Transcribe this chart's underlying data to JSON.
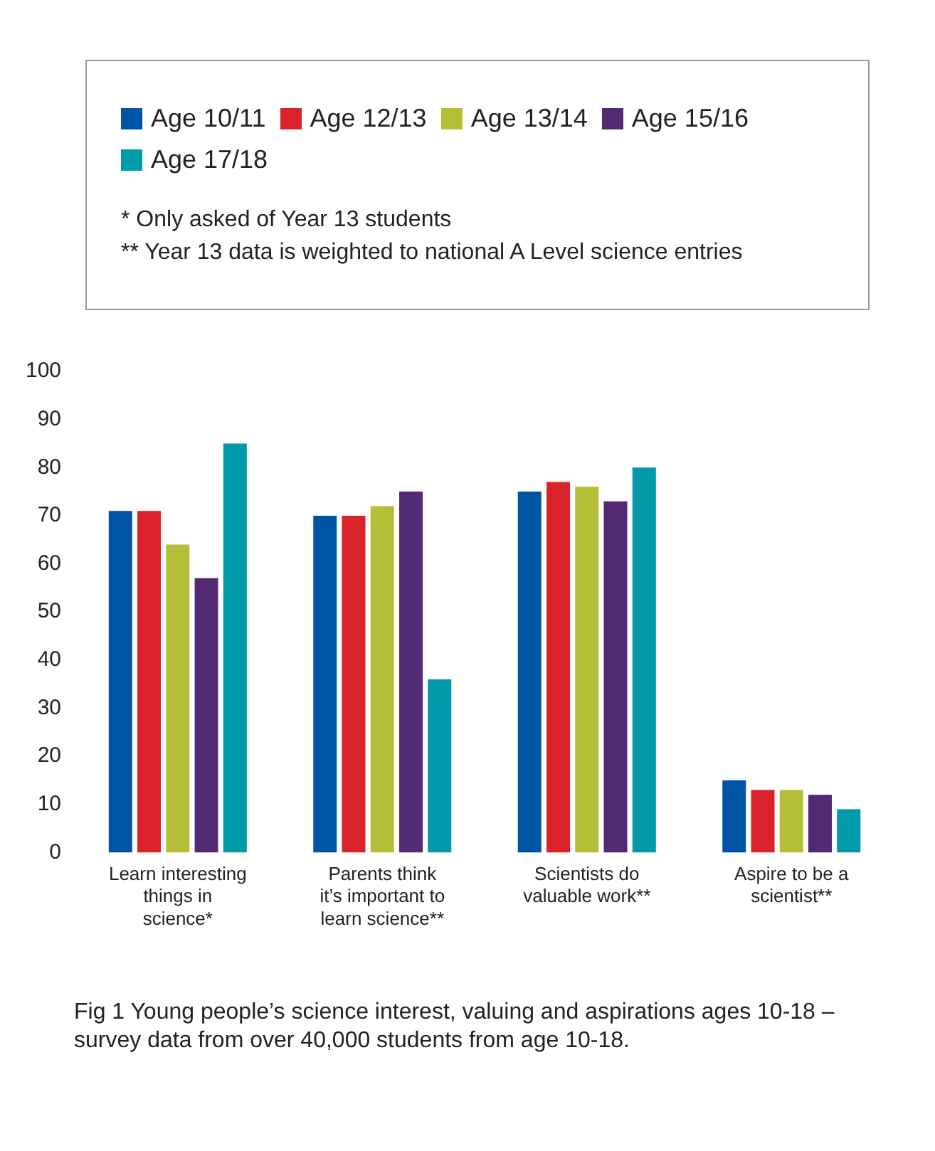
{
  "chart_data": {
    "type": "bar",
    "categories": [
      "Learn interesting things in science*",
      "Parents think it’s important to learn science**",
      "Scientists do valuable work**",
      "Aspire to be a scientist**"
    ],
    "series": [
      {
        "name": "Age 10/11",
        "color": "#0054a6",
        "values": [
          71,
          70,
          75,
          15
        ]
      },
      {
        "name": "Age 12/13",
        "color": "#da222b",
        "values": [
          71,
          70,
          77,
          13
        ]
      },
      {
        "name": "Age 13/14",
        "color": "#b5be37",
        "values": [
          64,
          72,
          76,
          13
        ]
      },
      {
        "name": "Age 15/16",
        "color": "#522a74",
        "values": [
          57,
          75,
          73,
          12
        ]
      },
      {
        "name": "Age 17/18",
        "color": "#009aa8",
        "values": [
          85,
          36,
          80,
          9
        ]
      }
    ],
    "ylim": [
      0,
      100
    ],
    "yticks": [
      0,
      10,
      20,
      30,
      40,
      50,
      60,
      70,
      80,
      90,
      100
    ],
    "grid": false,
    "legend": "top",
    "annotations": [
      "* Only asked of Year 13 students",
      "** Year 13 data is weighted to national A Level science entries",
      "Fig 1 Young people’s science interest, valuing and aspirations ages 10-18 – survey data from over 40,000 students from age 10-18."
    ]
  }
}
